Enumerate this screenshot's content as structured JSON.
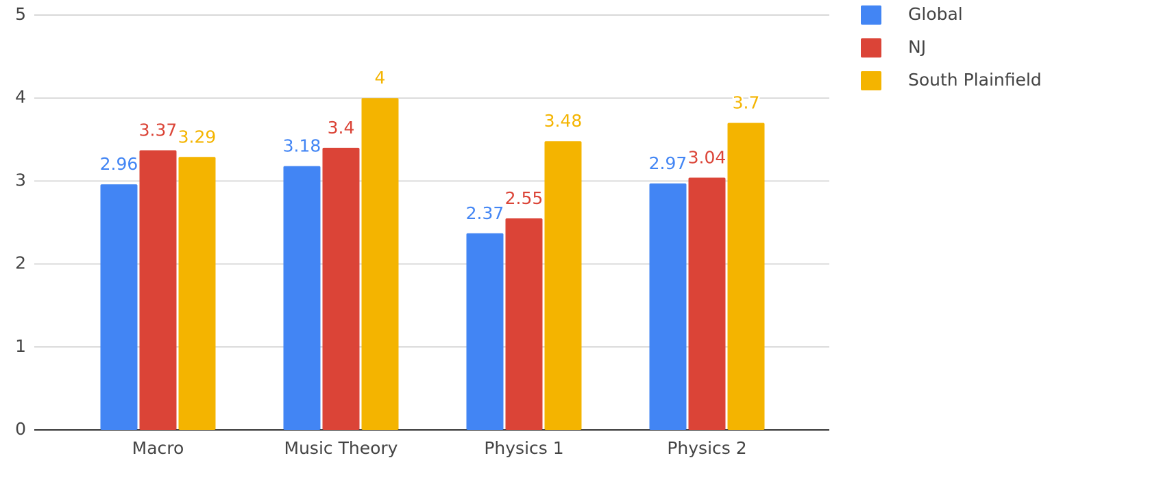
{
  "chart_data": {
    "type": "bar",
    "categories": [
      "Macro",
      "Music Theory",
      "Physics 1",
      "Physics 2"
    ],
    "series": [
      {
        "name": "Global",
        "color": "#4285f4",
        "values": [
          2.96,
          3.18,
          2.37,
          2.97
        ]
      },
      {
        "name": "NJ",
        "color": "#db4437",
        "values": [
          3.37,
          3.4,
          2.55,
          3.04
        ]
      },
      {
        "name": "South Plainfield",
        "color": "#f4b400",
        "values": [
          3.29,
          4,
          3.48,
          3.7
        ]
      }
    ],
    "ylim": [
      0,
      5
    ],
    "yticks": [
      0,
      1,
      2,
      3,
      4,
      5
    ],
    "grid": true,
    "legend": "right"
  }
}
